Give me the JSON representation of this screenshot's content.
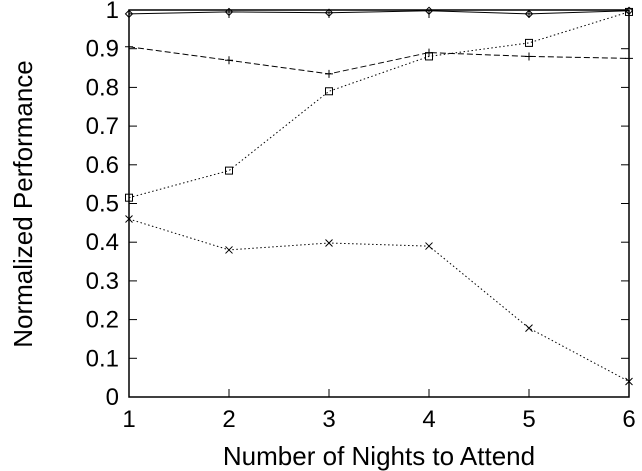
{
  "chart_data": {
    "type": "line",
    "title": "",
    "xlabel": "Number of Nights to Attend",
    "ylabel": "Normalized Performance",
    "xlim": [
      1,
      6
    ],
    "ylim": [
      0,
      1
    ],
    "xticks": [
      "1",
      "2",
      "3",
      "4",
      "5",
      "6"
    ],
    "yticks": [
      "0",
      "0.1",
      "0.2",
      "0.3",
      "0.4",
      "0.5",
      "0.6",
      "0.7",
      "0.8",
      "0.9",
      "1"
    ],
    "grid": false,
    "x": [
      1,
      2,
      3,
      4,
      5,
      6
    ],
    "series": [
      {
        "marker": "diamond",
        "line": "solid",
        "values": [
          0.99,
          0.995,
          0.993,
          0.998,
          0.99,
          0.998
        ]
      },
      {
        "marker": "plus",
        "line": "dashed",
        "values": [
          0.905,
          0.87,
          0.835,
          0.89,
          0.88,
          0.875
        ]
      },
      {
        "marker": "square",
        "line": "dotted",
        "values": [
          0.515,
          0.585,
          0.79,
          0.88,
          0.915,
          0.995
        ]
      },
      {
        "marker": "cross",
        "line": "dotted",
        "values": [
          0.46,
          0.38,
          0.398,
          0.39,
          0.178,
          0.04
        ]
      }
    ]
  }
}
